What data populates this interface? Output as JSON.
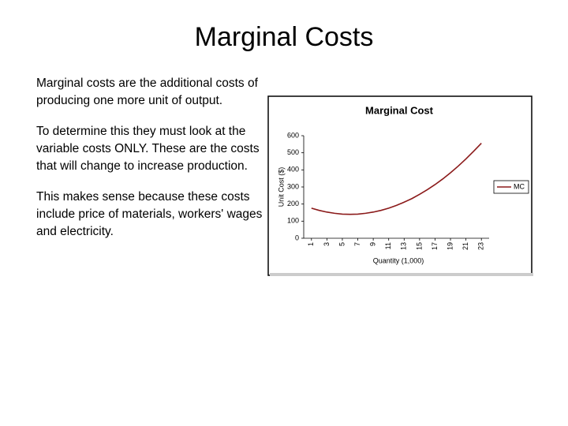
{
  "title": "Marginal Costs",
  "paragraphs": [
    "Marginal costs are the additional costs of producing one more unit of output.",
    "To determine this they must look at the variable costs ONLY. These are the costs that will change to increase production.",
    "This makes sense because these costs include price of materials, workers' wages and electricity."
  ],
  "chart_data": {
    "type": "line",
    "title": "Marginal Cost",
    "x_label": "Quantity (1,000)",
    "y_label": "Unit Cost ($)",
    "x": [
      1,
      2,
      3,
      4,
      5,
      6,
      7,
      8,
      9,
      10,
      11,
      12,
      13,
      14,
      15,
      16,
      17,
      18,
      19,
      20,
      21,
      22,
      23
    ],
    "series": [
      {
        "name": "MC",
        "color": "#8b1a1a",
        "values": [
          176,
          163,
          153,
          146,
          141,
          140,
          141,
          146,
          153,
          163,
          176,
          192,
          211,
          232,
          257,
          284,
          314,
          347,
          383,
          422,
          464,
          509,
          556
        ]
      }
    ],
    "xlim": [
      0,
      24
    ],
    "xticks": [
      1,
      3,
      5,
      7,
      9,
      11,
      13,
      15,
      17,
      19,
      21,
      23
    ],
    "ylim": [
      0,
      600
    ],
    "yticks": [
      0,
      100,
      200,
      300,
      400,
      500,
      600
    ],
    "legend": "right"
  }
}
